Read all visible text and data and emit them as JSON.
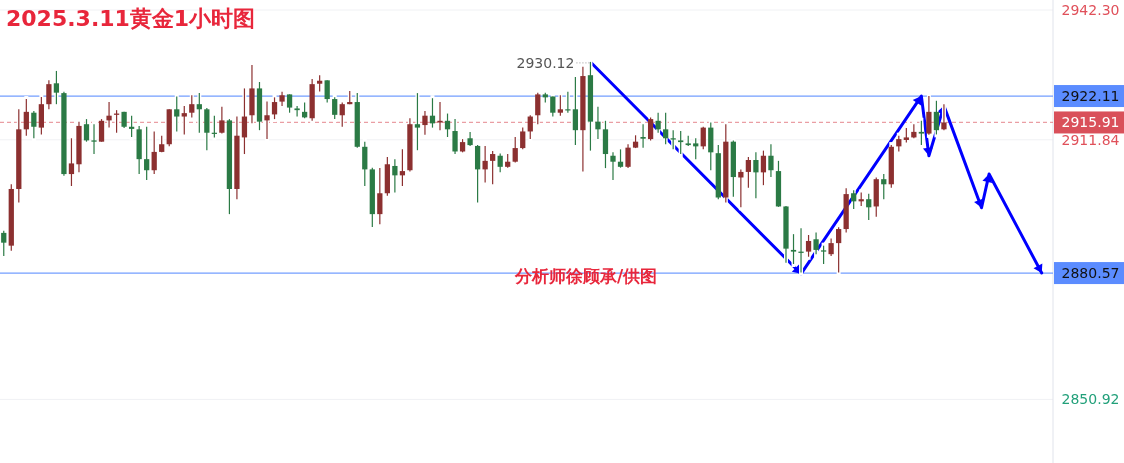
{
  "chart_data": {
    "type": "candlestick",
    "title": "2025.3.11黄金1小时图",
    "categories": [
      null,
      null,
      null,
      null,
      null,
      null,
      null,
      null,
      null,
      null,
      null,
      null,
      null,
      null,
      null,
      null,
      null,
      null,
      null,
      null,
      null,
      null,
      null,
      null,
      null,
      null,
      null,
      null,
      null,
      null,
      null,
      null,
      null,
      null,
      null,
      null,
      null,
      null,
      null,
      null,
      null,
      null,
      null,
      null,
      null,
      null,
      null,
      null,
      null,
      null,
      null,
      null,
      null,
      null,
      null,
      null,
      null,
      null,
      null,
      null,
      null,
      null,
      null,
      null,
      null,
      null,
      null,
      null,
      null,
      null,
      null,
      null,
      null,
      null,
      null,
      null,
      null,
      null,
      null,
      null,
      null,
      null,
      null,
      null,
      null,
      null,
      null,
      null,
      null,
      null,
      null,
      null,
      null,
      null,
      null,
      null,
      null,
      null,
      null,
      null,
      null,
      null,
      null,
      null,
      null,
      null,
      null,
      null,
      null,
      null,
      null,
      null,
      null,
      null,
      null,
      null,
      null,
      null,
      null,
      null,
      null,
      null,
      null,
      null,
      null,
      null,
      null,
      null,
      null,
      null,
      null,
      null,
      null,
      null,
      null,
      null,
      null,
      null,
      null,
      null
    ],
    "ohlc": [
      [
        2890.0,
        2890.5,
        2884.6,
        2887.7
      ],
      [
        2887.0,
        2901.4,
        2885.8,
        2900.3
      ],
      [
        2900.3,
        2919.0,
        2897.1,
        2914.3
      ],
      [
        2914.3,
        2921.4,
        2912.8,
        2918.4
      ],
      [
        2918.2,
        2918.6,
        2912.2,
        2914.9
      ],
      [
        2914.7,
        2921.9,
        2913.1,
        2920.2
      ],
      [
        2920.2,
        2925.8,
        2919.0,
        2924.9
      ],
      [
        2925.1,
        2928.0,
        2920.2,
        2922.9
      ],
      [
        2922.8,
        2923.1,
        2903.4,
        2903.8
      ],
      [
        2903.8,
        2912.2,
        2901.0,
        2906.3
      ],
      [
        2906.1,
        2916.1,
        2904.2,
        2915.1
      ],
      [
        2915.5,
        2916.7,
        2911.4,
        2911.7
      ],
      [
        2911.7,
        2915.5,
        2908.5,
        2911.4
      ],
      [
        2911.4,
        2916.7,
        2911.4,
        2916.3
      ],
      [
        2916.4,
        2920.7,
        2914.7,
        2917.5
      ],
      [
        2917.7,
        2918.8,
        2913.5,
        2918.0
      ],
      [
        2918.4,
        2918.4,
        2914.6,
        2914.9
      ],
      [
        2914.9,
        2917.5,
        2912.5,
        2914.4
      ],
      [
        2914.3,
        2915.1,
        2903.8,
        2907.3
      ],
      [
        2907.3,
        2914.9,
        2902.4,
        2904.7
      ],
      [
        2904.7,
        2913.8,
        2903.8,
        2909.0
      ],
      [
        2909.0,
        2912.8,
        2908.9,
        2910.8
      ],
      [
        2910.8,
        2919.0,
        2910.3,
        2919.0
      ],
      [
        2919.0,
        2922.0,
        2913.8,
        2917.3
      ],
      [
        2917.3,
        2919.8,
        2913.1,
        2918.1
      ],
      [
        2918.2,
        2922.3,
        2917.1,
        2920.2
      ],
      [
        2920.2,
        2922.8,
        2913.5,
        2919.0
      ],
      [
        2919.0,
        2919.3,
        2909.4,
        2913.5
      ],
      [
        2913.5,
        2917.5,
        2912.4,
        2913.3
      ],
      [
        2913.5,
        2919.6,
        2913.3,
        2916.4
      ],
      [
        2916.4,
        2916.7,
        2894.4,
        2900.3
      ],
      [
        2900.3,
        2917.3,
        2897.9,
        2912.8
      ],
      [
        2912.4,
        2923.9,
        2908.5,
        2917.3
      ],
      [
        2917.6,
        2929.4,
        2915.7,
        2923.9
      ],
      [
        2923.9,
        2925.4,
        2914.1,
        2916.1
      ],
      [
        2916.4,
        2920.8,
        2912.0,
        2917.6
      ],
      [
        2917.8,
        2921.8,
        2916.7,
        2920.7
      ],
      [
        2920.8,
        2923.1,
        2919.8,
        2922.3
      ],
      [
        2922.5,
        2922.5,
        2918.2,
        2919.4
      ],
      [
        2919.2,
        2919.8,
        2917.3,
        2918.8
      ],
      [
        2918.4,
        2920.6,
        2916.9,
        2917.1
      ],
      [
        2916.9,
        2926.1,
        2916.3,
        2924.9
      ],
      [
        2925.0,
        2927.0,
        2923.2,
        2925.7
      ],
      [
        2925.8,
        2925.8,
        2920.6,
        2921.4
      ],
      [
        2921.4,
        2921.8,
        2916.7,
        2917.7
      ],
      [
        2917.6,
        2920.6,
        2914.9,
        2920.2
      ],
      [
        2920.2,
        2923.3,
        2920.2,
        2920.7
      ],
      [
        2920.7,
        2922.8,
        2910.0,
        2910.2
      ],
      [
        2910.2,
        2911.4,
        2901.0,
        2904.9
      ],
      [
        2904.9,
        2905.3,
        2891.4,
        2894.4
      ],
      [
        2894.4,
        2905.2,
        2892.0,
        2899.3
      ],
      [
        2899.3,
        2907.8,
        2898.7,
        2906.1
      ],
      [
        2905.7,
        2907.3,
        2899.5,
        2903.5
      ],
      [
        2903.5,
        2909.6,
        2901.0,
        2904.5
      ],
      [
        2904.7,
        2916.9,
        2904.4,
        2915.5
      ],
      [
        2915.5,
        2922.8,
        2909.4,
        2914.7
      ],
      [
        2915.3,
        2918.6,
        2913.0,
        2917.5
      ],
      [
        2917.5,
        2921.6,
        2914.7,
        2915.7
      ],
      [
        2915.9,
        2920.7,
        2914.1,
        2916.3
      ],
      [
        2916.3,
        2918.0,
        2912.5,
        2914.3
      ],
      [
        2913.9,
        2916.7,
        2908.5,
        2909.1
      ],
      [
        2909.1,
        2912.0,
        2908.9,
        2911.3
      ],
      [
        2912.2,
        2913.7,
        2910.4,
        2910.6
      ],
      [
        2910.4,
        2910.6,
        2897.1,
        2904.9
      ],
      [
        2904.9,
        2910.4,
        2901.8,
        2906.9
      ],
      [
        2906.9,
        2909.2,
        2901.4,
        2908.5
      ],
      [
        2908.1,
        2908.6,
        2904.2,
        2905.5
      ],
      [
        2905.5,
        2908.5,
        2905.3,
        2906.7
      ],
      [
        2906.7,
        2912.5,
        2906.5,
        2909.9
      ],
      [
        2909.9,
        2914.7,
        2909.6,
        2913.8
      ],
      [
        2913.8,
        2917.6,
        2912.0,
        2917.3
      ],
      [
        2917.6,
        2922.9,
        2915.5,
        2922.5
      ],
      [
        2922.5,
        2922.9,
        2920.6,
        2921.8
      ],
      [
        2922.0,
        2922.0,
        2917.3,
        2918.2
      ],
      [
        2918.2,
        2922.3,
        2917.5,
        2919.0
      ],
      [
        2919.0,
        2923.1,
        2918.2,
        2918.8
      ],
      [
        2919.0,
        2926.6,
        2910.6,
        2914.1
      ],
      [
        2914.1,
        2929.0,
        2904.4,
        2926.8
      ],
      [
        2927.0,
        2930.12,
        2909.3,
        2916.1
      ],
      [
        2916.1,
        2919.6,
        2912.0,
        2914.3
      ],
      [
        2914.3,
        2916.3,
        2905.2,
        2908.5
      ],
      [
        2908.1,
        2908.9,
        2902.4,
        2906.7
      ],
      [
        2906.7,
        2909.6,
        2905.3,
        2905.5
      ],
      [
        2905.5,
        2910.8,
        2905.2,
        2910.0
      ],
      [
        2910.0,
        2912.9,
        2909.9,
        2911.4
      ],
      [
        2912.5,
        2915.5,
        2910.0,
        2912.1
      ],
      [
        2912.0,
        2917.1,
        2911.7,
        2916.7
      ],
      [
        2916.3,
        2918.2,
        2913.5,
        2914.3
      ],
      [
        2914.3,
        2918.2,
        2910.8,
        2912.2
      ],
      [
        2912.2,
        2914.1,
        2909.6,
        2911.9
      ],
      [
        2911.7,
        2913.9,
        2908.5,
        2911.3
      ],
      [
        2911.0,
        2912.8,
        2910.4,
        2910.6
      ],
      [
        2911.0,
        2912.2,
        2907.3,
        2910.3
      ],
      [
        2910.3,
        2914.9,
        2909.6,
        2914.7
      ],
      [
        2914.7,
        2915.9,
        2904.7,
        2908.9
      ],
      [
        2908.7,
        2910.6,
        2897.9,
        2898.3
      ],
      [
        2898.3,
        2915.5,
        2897.1,
        2911.4
      ],
      [
        2911.4,
        2911.7,
        2898.5,
        2903.1
      ],
      [
        2903.0,
        2904.9,
        2896.0,
        2904.3
      ],
      [
        2904.3,
        2907.8,
        2900.6,
        2907.1
      ],
      [
        2907.1,
        2908.9,
        2898.1,
        2904.2
      ],
      [
        2904.2,
        2909.3,
        2901.2,
        2908.1
      ],
      [
        2908.1,
        2910.8,
        2903.1,
        2904.7
      ],
      [
        2904.5,
        2906.9,
        2896.1,
        2896.2
      ],
      [
        2896.2,
        2896.3,
        2883.0,
        2886.3
      ],
      [
        2886.0,
        2889.7,
        2882.7,
        2885.6
      ],
      [
        2885.6,
        2891.1,
        2880.7,
        2885.3
      ],
      [
        2885.6,
        2889.5,
        2884.4,
        2888.1
      ],
      [
        2888.5,
        2890.1,
        2885.0,
        2886.0
      ],
      [
        2885.9,
        2887.0,
        2882.7,
        2885.6
      ],
      [
        2885.0,
        2888.7,
        2884.6,
        2887.6
      ],
      [
        2887.6,
        2891.3,
        2880.7,
        2890.9
      ],
      [
        2890.9,
        2900.5,
        2890.1,
        2899.1
      ],
      [
        2899.3,
        2900.0,
        2895.6,
        2897.4
      ],
      [
        2897.4,
        2899.5,
        2896.3,
        2897.9
      ],
      [
        2897.9,
        2899.2,
        2893.0,
        2896.0
      ],
      [
        2896.2,
        2903.0,
        2893.8,
        2902.6
      ],
      [
        2902.6,
        2903.8,
        2897.9,
        2901.4
      ],
      [
        2901.4,
        2910.6,
        2900.6,
        2910.2
      ],
      [
        2910.3,
        2912.8,
        2909.1,
        2912.0
      ],
      [
        2911.8,
        2914.6,
        2911.2,
        2912.4
      ],
      [
        2912.4,
        2915.5,
        2912.2,
        2913.7
      ],
      [
        2913.7,
        2916.3,
        2910.6,
        2913.3
      ],
      [
        2913.3,
        2922.1,
        2913.0,
        2918.4
      ],
      [
        2918.4,
        2921.0,
        2913.1,
        2914.1
      ],
      [
        2914.3,
        2920.2,
        2914.1,
        2915.91
      ],
      null,
      null,
      null,
      null,
      null,
      null,
      null,
      null,
      null,
      null,
      null,
      null,
      null,
      null
    ],
    "series": [
      {
        "type": "line",
        "color": "#0000ff",
        "values": [
          null,
          null,
          null,
          null,
          null,
          null,
          null,
          null,
          null,
          null,
          null,
          null,
          null,
          null,
          null,
          null,
          null,
          null,
          null,
          null,
          null,
          null,
          null,
          null,
          null,
          null,
          null,
          null,
          null,
          null,
          null,
          null,
          null,
          null,
          null,
          null,
          null,
          null,
          null,
          null,
          null,
          null,
          null,
          null,
          null,
          null,
          null,
          null,
          null,
          null,
          null,
          null,
          null,
          null,
          null,
          null,
          null,
          null,
          null,
          null,
          null,
          null,
          null,
          null,
          null,
          null,
          null,
          null,
          null,
          null,
          null,
          null,
          null,
          null,
          null,
          null,
          null,
          null,
          2930.1,
          null,
          null,
          null,
          null,
          null,
          null,
          null,
          null,
          null,
          null,
          null,
          null,
          null,
          null,
          null,
          null,
          null,
          null,
          null,
          null,
          null,
          null,
          null,
          null,
          null,
          null,
          null,
          2880.4,
          null,
          null,
          null,
          null,
          null,
          null,
          null,
          null,
          null,
          null,
          null,
          null,
          null,
          null,
          null,
          2922.1,
          2908.1,
          null,
          2919.8,
          null,
          null,
          null,
          null,
          2895.9,
          2903.8,
          null,
          null,
          null,
          null,
          null,
          null,
          2880.6,
          null
        ]
      }
    ],
    "ylim": [
      2836.0,
      2942.3
    ],
    "yticks": [
      {
        "value": 2942.3,
        "label": "2942.30"
      },
      2911.84,
      2850.92
    ],
    "grid": "y",
    "ref_lines": [
      {
        "axis": "y",
        "value": 2922.11,
        "label": "2922.11",
        "color": "#5b8cff"
      },
      {
        "axis": "y",
        "value": 2880.57,
        "label": "2880.57",
        "color": "#5b8cff"
      },
      {
        "axis": "y",
        "value": 2915.91,
        "label": "2915.91",
        "color": "#d9505a",
        "line_style": "dashed"
      }
    ],
    "annotations": [
      "2930.12",
      "分析师徐顾承/供图"
    ],
    "tick_labels": "y"
  }
}
